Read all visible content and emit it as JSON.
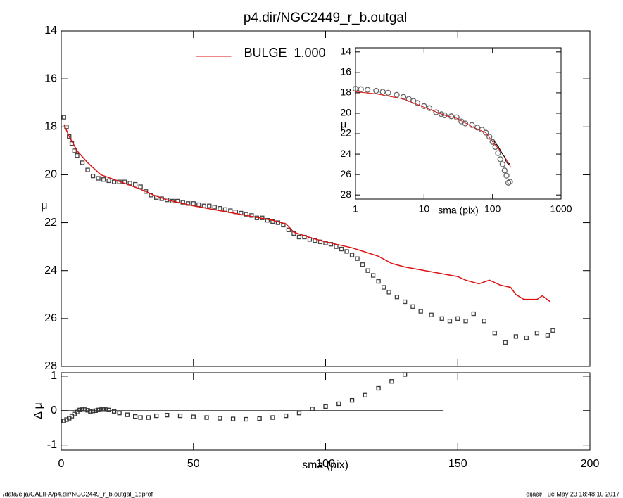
{
  "title": "p4.dir/NGC2449_r_b.outgal",
  "footer": {
    "left": "/data/eija/CALIFA/p4.dir/NGC2449_r_b.outgal_1dprof",
    "right": "eija@  Tue May 23 18:48:10 2017"
  },
  "chart_data": [
    {
      "type": "line",
      "ylabel": "μ",
      "xlim": [
        0,
        200
      ],
      "xticks": [
        0,
        50,
        100,
        150,
        200
      ],
      "show_xtick_labels": false,
      "ylim": [
        28,
        14
      ],
      "yticks": [
        14,
        16,
        18,
        20,
        22,
        24,
        26,
        28
      ],
      "legend": "top",
      "series": [
        {
          "marker": "square",
          "color": "#444444",
          "x": [
            1,
            2,
            3,
            4,
            5,
            6,
            8,
            10,
            12,
            14,
            16,
            18,
            20,
            22,
            24,
            26,
            28,
            30,
            32,
            34,
            36,
            38,
            40,
            42,
            44,
            46,
            48,
            50,
            52,
            54,
            56,
            58,
            60,
            62,
            64,
            66,
            68,
            70,
            72,
            74,
            76,
            78,
            80,
            82,
            84,
            86,
            88,
            90,
            92,
            94,
            96,
            98,
            100,
            102,
            104,
            106,
            108,
            110,
            112,
            114,
            116,
            118,
            120,
            122,
            124,
            127,
            130,
            133,
            136,
            140,
            144,
            147,
            150,
            153,
            156,
            160,
            164,
            168,
            172,
            176,
            180,
            184,
            186
          ],
          "values": [
            17.6,
            18.0,
            18.4,
            18.7,
            19.0,
            19.2,
            19.5,
            19.8,
            20.05,
            20.15,
            20.2,
            20.25,
            20.3,
            20.3,
            20.3,
            20.35,
            20.4,
            20.5,
            20.7,
            20.85,
            20.95,
            21.0,
            21.05,
            21.1,
            21.1,
            21.15,
            21.2,
            21.2,
            21.25,
            21.3,
            21.3,
            21.35,
            21.4,
            21.45,
            21.5,
            21.55,
            21.6,
            21.65,
            21.7,
            21.8,
            21.8,
            21.9,
            21.95,
            22.0,
            22.1,
            22.3,
            22.45,
            22.6,
            22.6,
            22.7,
            22.75,
            22.8,
            22.85,
            22.9,
            23.0,
            23.1,
            23.2,
            23.35,
            23.5,
            23.75,
            24.0,
            24.2,
            24.45,
            24.7,
            24.9,
            25.1,
            25.3,
            25.5,
            25.7,
            25.85,
            26.0,
            26.1,
            26.0,
            26.1,
            25.8,
            26.1,
            26.6,
            27.0,
            26.75,
            26.8,
            26.6,
            26.7,
            26.5
          ]
        },
        {
          "name": "BULGE  1.000",
          "marker": "line",
          "color": "#dd1111",
          "x": [
            1,
            3,
            6,
            10,
            15,
            20,
            25,
            30,
            35,
            40,
            50,
            60,
            70,
            80,
            85,
            88,
            95,
            100,
            110,
            120,
            125,
            130,
            140,
            150,
            153,
            158,
            162,
            166,
            170,
            172,
            175,
            180,
            182,
            185
          ],
          "values": [
            17.9,
            18.4,
            19.0,
            19.5,
            20.0,
            20.2,
            20.4,
            20.6,
            20.85,
            21.05,
            21.3,
            21.5,
            21.7,
            21.9,
            22.05,
            22.4,
            22.65,
            22.8,
            23.05,
            23.4,
            23.7,
            23.85,
            24.05,
            24.25,
            24.4,
            24.55,
            24.4,
            24.6,
            24.7,
            25.0,
            25.2,
            25.2,
            25.05,
            25.3
          ]
        }
      ]
    },
    {
      "type": "scatter",
      "xlabel": "sma (pix)",
      "ylabel": "Δ μ",
      "xlim": [
        0,
        200
      ],
      "xticks": [
        0,
        50,
        100,
        150,
        200
      ],
      "ylim": [
        -1.15,
        1.1
      ],
      "yticks": [
        -1,
        0,
        1
      ],
      "series": [
        {
          "marker": "square",
          "color": "#333333",
          "x": [
            1,
            2,
            3,
            4,
            5,
            6,
            7,
            8,
            9,
            10,
            11,
            12,
            13,
            14,
            15,
            16,
            17,
            18,
            20,
            22,
            25,
            28,
            30,
            33,
            36,
            40,
            45,
            50,
            55,
            60,
            65,
            70,
            75,
            80,
            85,
            90,
            95,
            100,
            105,
            110,
            115,
            120,
            125,
            130
          ],
          "values": [
            -0.3,
            -0.26,
            -0.22,
            -0.16,
            -0.1,
            -0.04,
            0.02,
            0.03,
            0.03,
            0.01,
            -0.02,
            -0.01,
            0.0,
            0.02,
            0.03,
            0.03,
            0.03,
            0.02,
            -0.02,
            -0.07,
            -0.12,
            -0.17,
            -0.2,
            -0.2,
            -0.15,
            -0.13,
            -0.15,
            -0.18,
            -0.2,
            -0.22,
            -0.24,
            -0.25,
            -0.23,
            -0.2,
            -0.15,
            -0.07,
            0.05,
            0.12,
            0.2,
            0.3,
            0.45,
            0.65,
            0.85,
            1.05
          ]
        }
      ]
    },
    {
      "type": "line",
      "xlabel": "sma (pix)",
      "ylabel": "μ",
      "xlog": true,
      "xlim": [
        1,
        1000
      ],
      "xticks": [
        1,
        10,
        100,
        1000
      ],
      "ylim": [
        28.4,
        13.6
      ],
      "yticks": [
        14,
        16,
        18,
        20,
        22,
        24,
        26,
        28
      ],
      "series": [
        {
          "marker": "circle",
          "color": "#666666",
          "x": [
            1,
            1.2,
            1.5,
            2,
            2.5,
            3,
            4,
            5,
            6,
            7,
            8,
            10,
            12,
            15,
            18,
            20,
            25,
            30,
            35,
            40,
            50,
            60,
            70,
            80,
            90,
            100,
            110,
            120,
            130,
            140,
            150,
            160,
            170,
            180
          ],
          "values": [
            17.6,
            17.65,
            17.7,
            17.8,
            17.9,
            18.0,
            18.2,
            18.4,
            18.6,
            18.8,
            19.0,
            19.3,
            19.5,
            19.9,
            20.1,
            20.2,
            20.3,
            20.4,
            20.8,
            21.0,
            21.15,
            21.4,
            21.6,
            21.9,
            22.3,
            22.8,
            23.3,
            23.9,
            24.5,
            25.0,
            25.6,
            26.1,
            26.8,
            26.7
          ]
        },
        {
          "marker": "line",
          "color": "#dd1111",
          "x": [
            1,
            2,
            5,
            10,
            20,
            30,
            50,
            80,
            100,
            120,
            150,
            185
          ],
          "values": [
            17.9,
            18.1,
            18.6,
            19.4,
            20.2,
            20.5,
            21.3,
            21.9,
            22.8,
            23.4,
            24.25,
            25.3
          ]
        },
        {
          "marker": "line",
          "color": "#000000",
          "x": [
            100,
            120,
            140,
            150,
            160,
            170,
            180
          ],
          "values": [
            22.6,
            23.2,
            24.0,
            24.3,
            24.8,
            25.0,
            24.9
          ]
        }
      ]
    }
  ]
}
